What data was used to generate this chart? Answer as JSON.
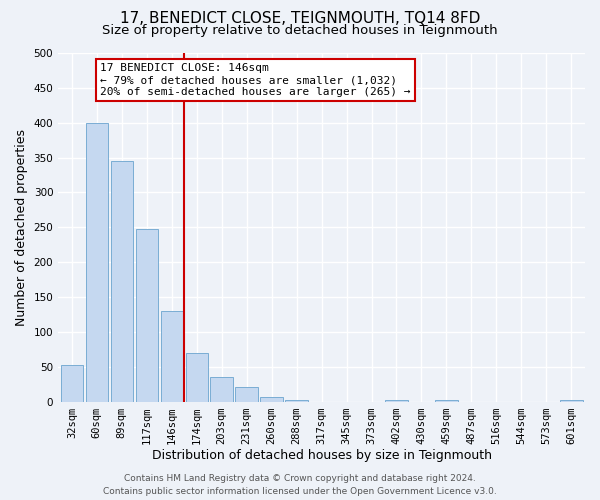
{
  "title": "17, BENEDICT CLOSE, TEIGNMOUTH, TQ14 8FD",
  "subtitle": "Size of property relative to detached houses in Teignmouth",
  "xlabel": "Distribution of detached houses by size in Teignmouth",
  "ylabel": "Number of detached properties",
  "bar_labels": [
    "32sqm",
    "60sqm",
    "89sqm",
    "117sqm",
    "146sqm",
    "174sqm",
    "203sqm",
    "231sqm",
    "260sqm",
    "288sqm",
    "317sqm",
    "345sqm",
    "373sqm",
    "402sqm",
    "430sqm",
    "459sqm",
    "487sqm",
    "516sqm",
    "544sqm",
    "573sqm",
    "601sqm"
  ],
  "bar_values": [
    52,
    400,
    345,
    248,
    130,
    70,
    35,
    21,
    6,
    2,
    0,
    0,
    0,
    2,
    0,
    2,
    0,
    0,
    0,
    0,
    2
  ],
  "bar_color": "#c5d8f0",
  "bar_edge_color": "#7aadd4",
  "vline_x": 4.5,
  "vline_color": "#cc0000",
  "annotation_line1": "17 BENEDICT CLOSE: 146sqm",
  "annotation_line2": "← 79% of detached houses are smaller (1,032)",
  "annotation_line3": "20% of semi-detached houses are larger (265) →",
  "ylim": [
    0,
    500
  ],
  "yticks": [
    0,
    50,
    100,
    150,
    200,
    250,
    300,
    350,
    400,
    450,
    500
  ],
  "footer_line1": "Contains HM Land Registry data © Crown copyright and database right 2024.",
  "footer_line2": "Contains public sector information licensed under the Open Government Licence v3.0.",
  "background_color": "#eef2f8",
  "grid_color": "#ffffff",
  "title_fontsize": 11,
  "subtitle_fontsize": 9.5,
  "axis_label_fontsize": 9,
  "tick_fontsize": 7.5,
  "annotation_fontsize": 8,
  "footer_fontsize": 6.5
}
